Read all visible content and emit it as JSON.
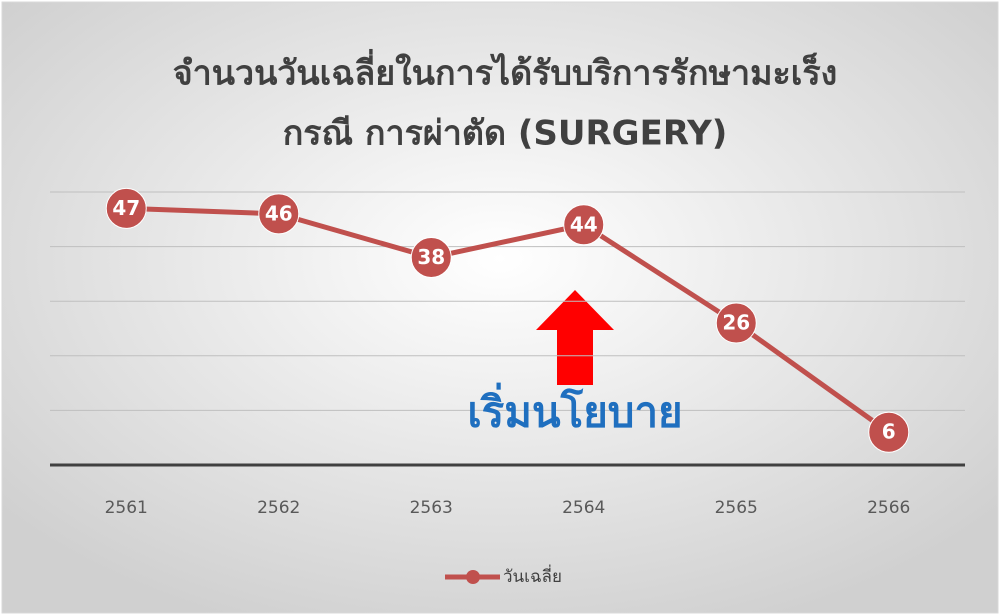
{
  "chart_data": {
    "type": "line",
    "title": [
      "จำนวนวันเฉลี่ยในการได้รับบริการรักษามะเร็ง",
      "กรณี การผ่าตัด (SURGERY)"
    ],
    "categories": [
      "2561",
      "2562",
      "2563",
      "2564",
      "2565",
      "2566"
    ],
    "series": [
      {
        "name": "วันเฉลี่ย",
        "color": "#c0504d",
        "values": [
          47,
          46,
          38,
          44,
          26,
          6
        ]
      }
    ],
    "ylim": [
      0,
      50
    ],
    "yticks": [
      0,
      10,
      20,
      30,
      40,
      50
    ],
    "grid": true,
    "annotation": "เริ่มนโยบาย",
    "legend": "bottom"
  }
}
